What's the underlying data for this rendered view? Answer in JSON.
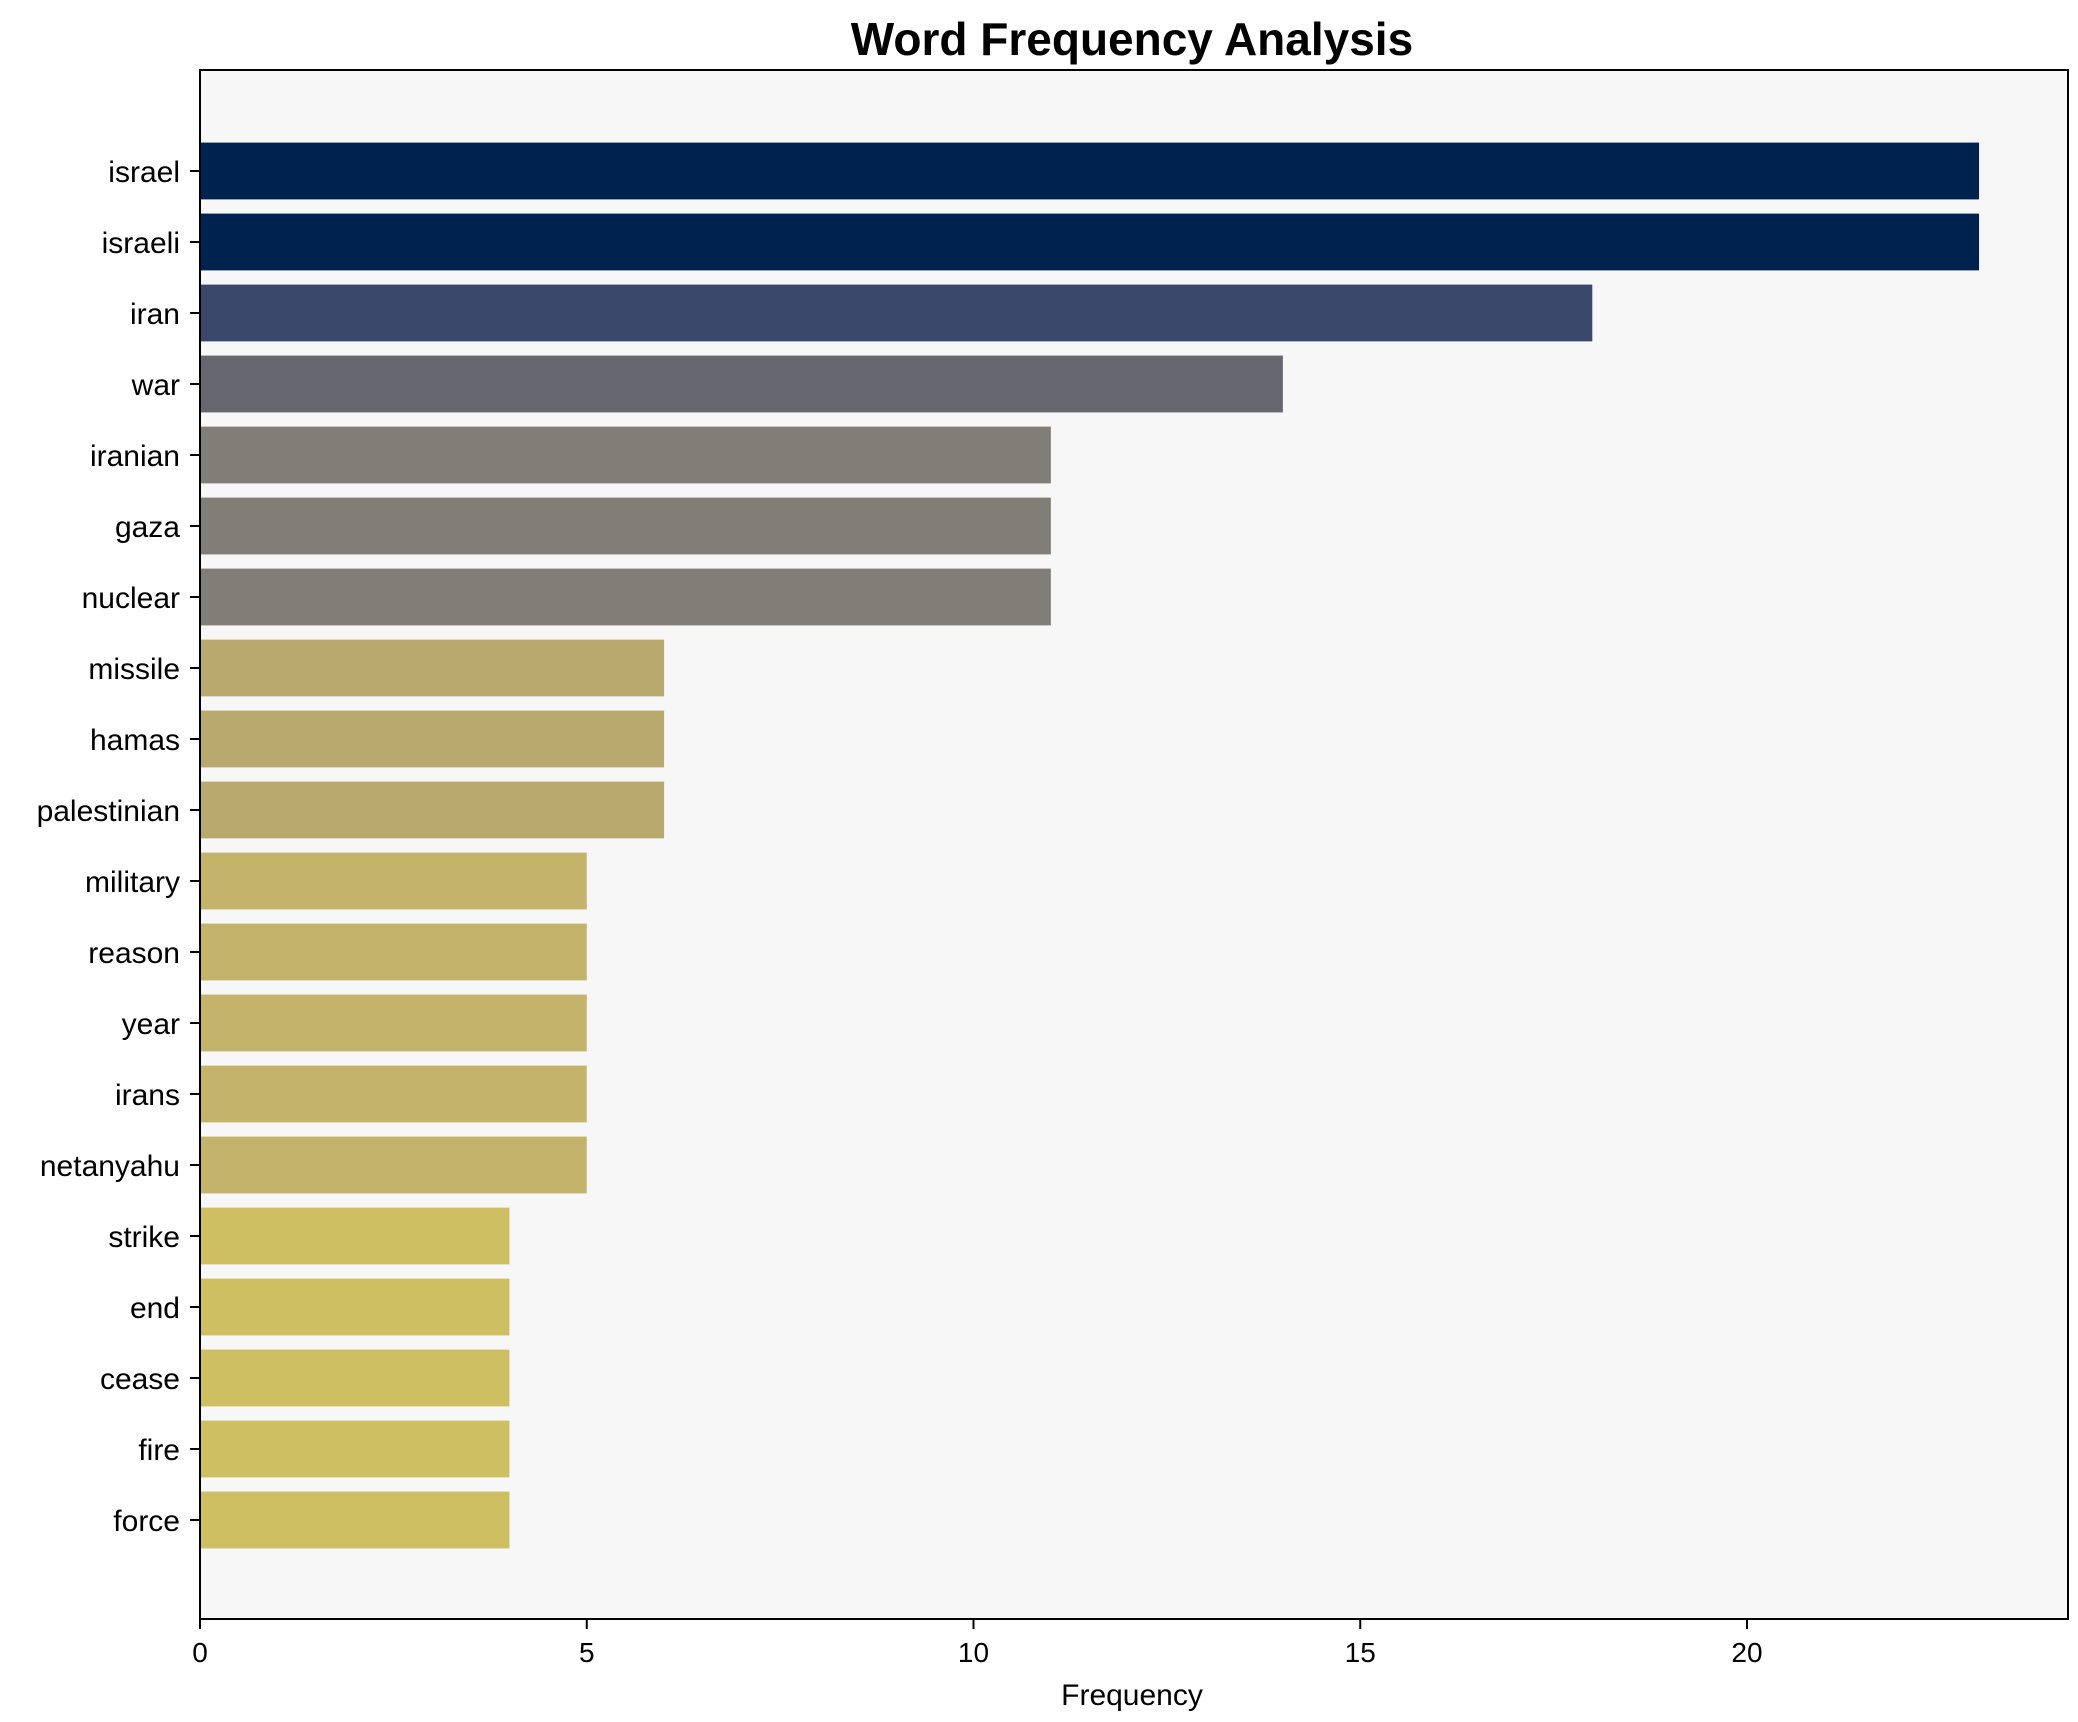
{
  "chart_data": {
    "type": "bar",
    "orientation": "horizontal",
    "title": "Word Frequency Analysis",
    "xlabel": "Frequency",
    "ylabel": "",
    "xlim": [
      0,
      24.15
    ],
    "xticks": [
      0,
      5,
      10,
      15,
      20
    ],
    "grid": false,
    "background": "#f7f7f7",
    "categories": [
      "israel",
      "israeli",
      "iran",
      "war",
      "iranian",
      "gaza",
      "nuclear",
      "missile",
      "hamas",
      "palestinian",
      "military",
      "reason",
      "year",
      "irans",
      "netanyahu",
      "strike",
      "end",
      "cease",
      "fire",
      "force"
    ],
    "values": [
      23,
      23,
      18,
      14,
      11,
      11,
      11,
      6,
      6,
      6,
      5,
      5,
      5,
      5,
      5,
      4,
      4,
      4,
      4,
      4
    ],
    "colors": [
      "#00224e",
      "#00224e",
      "#3a486c",
      "#666770",
      "#817e77",
      "#817e77",
      "#817e77",
      "#b8aa6e",
      "#b8aa6e",
      "#b8aa6e",
      "#c4b46b",
      "#c4b46b",
      "#c4b46b",
      "#c4b46b",
      "#c4b46b",
      "#cfbf63",
      "#cfbf63",
      "#cfbf63",
      "#cfbf63",
      "#cfbf63"
    ]
  }
}
